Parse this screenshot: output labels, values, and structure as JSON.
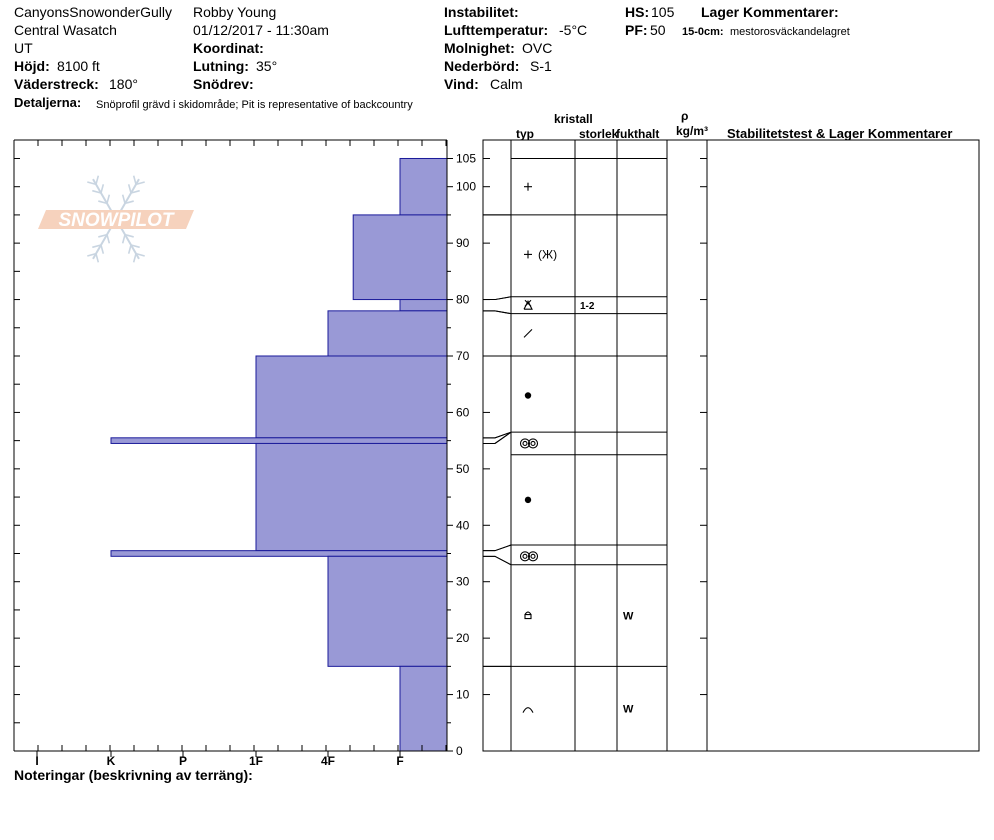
{
  "header": {
    "location": "CanyonsSnowonderGully",
    "range": "Central Wasatch",
    "state": "UT",
    "elevation_label": "Höjd:",
    "elevation_value": "8100 ft",
    "aspect_label": "Väderstreck:",
    "aspect_value": "180°",
    "details_label": "Detaljerna:",
    "details_value": "Snöprofil grävd i skidområde;  Pit is representative of backcountry",
    "observer": "Robby Young",
    "datetime": "01/12/2017 - 11:30am",
    "coord_label": "Koordinat:",
    "slope_label": "Lutning:",
    "slope_value": "35°",
    "drift_label": "Snödrev:",
    "instability_label": "Instabilitet:",
    "airtemp_label": "Lufttemperatur:",
    "airtemp_value": "-5°C",
    "sky_label": "Molnighet:",
    "sky_value": "OVC",
    "precip_label": "Nederbörd:",
    "precip_value": "S-1",
    "wind_label": "Vind:",
    "wind_value": "Calm",
    "hs_label": "HS:",
    "hs_value": "105",
    "pf_label": "PF:",
    "pf_value": "50",
    "layer_comments_label": "Lager Kommentarer:",
    "layer_comment_depth": "15-0cm:",
    "layer_comment_text": "mestorosväckandelagret"
  },
  "columns": {
    "crystal": "kristall",
    "type": "typ",
    "size": "storlek",
    "moisture": "fukthalt",
    "rho": "ρ",
    "density_unit": "kg/m³",
    "stability": "Stabilitetstest & Lager Kommentarer"
  },
  "footer": {
    "notes": "Noteringar (beskrivning av terräng):"
  },
  "logo_text": "SNOWPILOT",
  "colors": {
    "hardness_fill": "#9999d6",
    "hardness_stroke": "#1a1a9a"
  },
  "chart_data": {
    "type": "bar",
    "orientation": "horizontal",
    "y_range": [
      0,
      105
    ],
    "y_ticks": [
      0,
      10,
      20,
      30,
      40,
      50,
      60,
      70,
      80,
      90,
      100,
      105
    ],
    "hardness_scale": [
      "I",
      "K",
      "P",
      "1F",
      "4F",
      "F"
    ],
    "hardness_layers": [
      {
        "top": 105,
        "bottom": 95,
        "hardness": "F"
      },
      {
        "top": 95,
        "bottom": 80,
        "hardness": "4F-F"
      },
      {
        "top": 80,
        "bottom": 78,
        "hardness": "F"
      },
      {
        "top": 78,
        "bottom": 70,
        "hardness": "4F"
      },
      {
        "top": 70,
        "bottom": 55.5,
        "hardness": "1F"
      },
      {
        "top": 55.5,
        "bottom": 54.5,
        "hardness": "K"
      },
      {
        "top": 54.5,
        "bottom": 35.5,
        "hardness": "1F"
      },
      {
        "top": 35.5,
        "bottom": 34.5,
        "hardness": "K"
      },
      {
        "top": 34.5,
        "bottom": 15,
        "hardness": "4F"
      },
      {
        "top": 15,
        "bottom": 0,
        "hardness": "F"
      }
    ],
    "hardness_values": [
      5,
      4.35,
      5,
      4,
      3,
      1,
      3,
      1,
      4,
      5
    ],
    "strat_boundaries": [
      105,
      95,
      80.5,
      77.5,
      70,
      56.5,
      52.5,
      36.5,
      33,
      15
    ],
    "layer_symbols": [
      {
        "depth": 100,
        "glyph": "+",
        "size": "",
        "moisture": ""
      },
      {
        "depth": 88,
        "glyph": "+ (X)",
        "size": "",
        "moisture": ""
      },
      {
        "depth": 79,
        "glyph": "X",
        "size": "1-2",
        "moisture": ""
      },
      {
        "depth": 74,
        "glyph": "/",
        "size": "",
        "moisture": ""
      },
      {
        "depth": 63,
        "glyph": "●",
        "size": "",
        "moisture": ""
      },
      {
        "depth": 54.5,
        "glyph": "◎◎",
        "size": "",
        "moisture": ""
      },
      {
        "depth": 44.5,
        "glyph": "●",
        "size": "",
        "moisture": ""
      },
      {
        "depth": 34.5,
        "glyph": "◎◎",
        "size": "",
        "moisture": ""
      },
      {
        "depth": 24,
        "glyph": "rounded",
        "size": "",
        "moisture": "W"
      },
      {
        "depth": 7.5,
        "glyph": "^",
        "size": "",
        "moisture": "W"
      }
    ]
  }
}
